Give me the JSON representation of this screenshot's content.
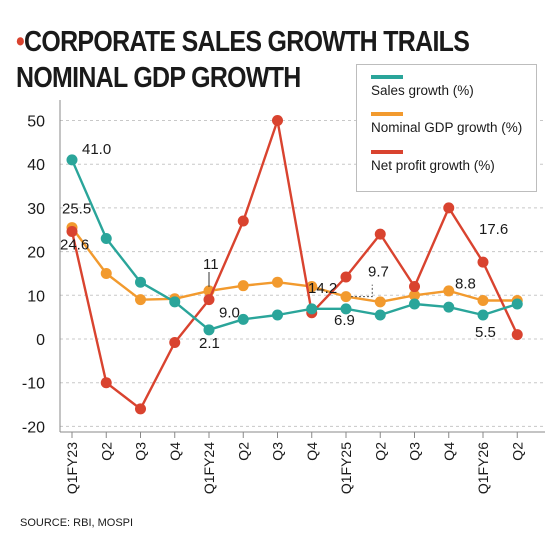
{
  "title": {
    "line1": "CORPORATE SALES GROWTH TRAILS",
    "line2": "NOMINAL GDP GROWTH",
    "bullet": "•"
  },
  "source": "SOURCE: RBI, MOSPI",
  "colors": {
    "sales": "#2aa59a",
    "gdp": "#f29a2e",
    "profit": "#d9432f",
    "title_bullet": "#d9432f",
    "grid": "#c8c8c8"
  },
  "chart_data": {
    "type": "line",
    "title": "CORPORATE SALES GROWTH TRAILS NOMINAL GDP GROWTH",
    "xlabel": "",
    "ylabel": "",
    "ylim": [
      -20,
      50
    ],
    "yticks": [
      50,
      40,
      30,
      20,
      10,
      0,
      -10,
      -20
    ],
    "grid": true,
    "legend_position": "top-right",
    "categories": [
      "Q1FY23",
      "Q2",
      "Q3",
      "Q4",
      "Q1FY24",
      "Q2",
      "Q3",
      "Q4",
      "Q1FY25",
      "Q2",
      "Q3",
      "Q4",
      "Q1FY26",
      "Q2"
    ],
    "series": [
      {
        "name": "Sales growth (%)",
        "key": "sales",
        "values": [
          41.0,
          23.0,
          13.0,
          8.5,
          2.1,
          4.5,
          5.5,
          6.9,
          6.9,
          5.5,
          8.0,
          7.3,
          5.5,
          8.0
        ]
      },
      {
        "name": "Nominal GDP growth (%)",
        "key": "gdp",
        "values": [
          25.5,
          15.0,
          9.0,
          9.2,
          11.0,
          12.2,
          13.0,
          12.0,
          9.7,
          8.5,
          10.0,
          11.0,
          8.8,
          8.8
        ]
      },
      {
        "name": "Net profit growth (%)",
        "key": "profit",
        "values": [
          24.6,
          -10.0,
          -16.0,
          -0.8,
          9.0,
          27.0,
          50.0,
          6.0,
          14.2,
          24.0,
          12.0,
          30.0,
          17.6,
          1.0
        ]
      }
    ],
    "annotations": [
      {
        "text": "41.0",
        "series": "sales",
        "index": 0
      },
      {
        "text": "25.5",
        "series": "gdp",
        "index": 0
      },
      {
        "text": "24.6",
        "series": "profit",
        "index": 0
      },
      {
        "text": "11",
        "series": "gdp",
        "index": 4
      },
      {
        "text": "9.0",
        "series": "profit",
        "index": 4
      },
      {
        "text": "2.1",
        "series": "sales",
        "index": 4
      },
      {
        "text": "14.2",
        "series": "profit",
        "index": 8
      },
      {
        "text": "6.9",
        "series": "sales",
        "index": 8
      },
      {
        "text": "9.7",
        "series": "gdp",
        "index": 8
      },
      {
        "text": "17.6",
        "series": "profit",
        "index": 12
      },
      {
        "text": "8.8",
        "series": "gdp",
        "index": 12
      },
      {
        "text": "5.5",
        "series": "sales",
        "index": 12
      }
    ]
  }
}
